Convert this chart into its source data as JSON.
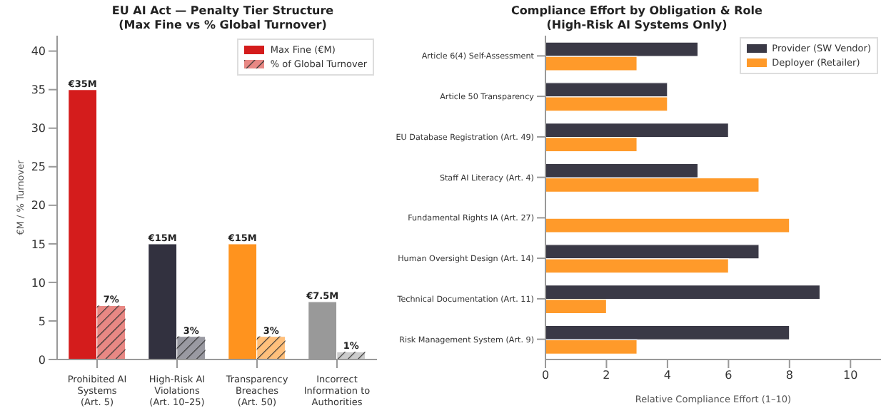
{
  "chart_data": [
    {
      "type": "bar",
      "title": "EU AI Act — Penalty Tier Structure\n(Max Fine vs % Global Turnover)",
      "ylabel": "€M / % Turnover",
      "categories": [
        "Prohibited AI\nSystems\n(Art. 5)",
        "High-Risk AI\nViolations\n(Art. 10–25)",
        "Transparency\nBreaches\n(Art. 50)",
        "Incorrect\nInformation to\nAuthorities"
      ],
      "series": [
        {
          "name": "Max Fine (€M)",
          "values": [
            35,
            15,
            15,
            7.5
          ],
          "colors": [
            "#d41c1c",
            "#32313f",
            "#ff931e",
            "#999999"
          ],
          "value_labels": [
            "€35M",
            "€15M",
            "€15M",
            "€7.5M"
          ]
        },
        {
          "name": "% of Global Turnover",
          "values": [
            7,
            3,
            3,
            1
          ],
          "colors": [
            "#e88884",
            "#9a9aa2",
            "#ffc07c",
            "#cccccc"
          ],
          "value_labels": [
            "7%",
            "3%",
            "3%",
            "1%"
          ]
        }
      ],
      "ylim": [
        0,
        42
      ],
      "yticks": [
        0,
        5,
        10,
        15,
        20,
        25,
        30,
        35,
        40
      ],
      "legend": "top right"
    },
    {
      "type": "bar",
      "orientation": "horizontal",
      "title": "Compliance Effort by Obligation & Role\n(High-Risk AI Systems Only)",
      "xlabel": "Relative Compliance Effort (1–10)",
      "categories": [
        "Article 6(4) Self-Assessment",
        "Article 50 Transparency",
        "EU Database Registration (Art. 49)",
        "Staff AI Literacy (Art. 4)",
        "Fundamental Rights IA (Art. 27)",
        "Human Oversight Design (Art. 14)",
        "Technical Documentation (Art. 11)",
        "Risk Management System (Art. 9)"
      ],
      "series": [
        {
          "name": "Provider (SW Vendor)",
          "color": "#3a3946",
          "values": [
            5,
            4,
            6,
            5,
            0,
            7,
            9,
            8
          ]
        },
        {
          "name": "Deployer (Retailer)",
          "color": "#ff9a2a",
          "values": [
            3,
            4,
            3,
            7,
            8,
            6,
            2,
            3
          ]
        }
      ],
      "xlim": [
        0,
        11
      ],
      "xticks": [
        0,
        2,
        4,
        6,
        8,
        10
      ],
      "legend": "top right"
    }
  ]
}
